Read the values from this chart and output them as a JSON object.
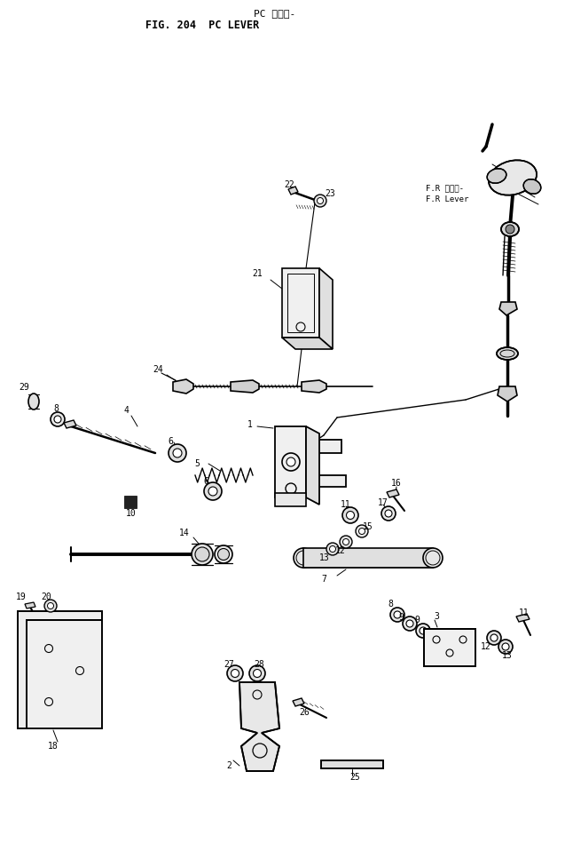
{
  "title1": "PC レバー-",
  "title2": "FIG. 204  PC LEVER",
  "bg": "#ffffff",
  "fg": "#000000",
  "fig_w": 6.37,
  "fig_h": 9.67,
  "dpi": 100
}
